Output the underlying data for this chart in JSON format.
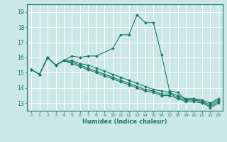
{
  "xlabel": "Humidex (Indice chaleur)",
  "bg_color": "#cce8e4",
  "grid_color": "#ffffff",
  "line_color": "#1a7a6a",
  "xlim": [
    -0.5,
    23.5
  ],
  "ylim": [
    12.5,
    19.5
  ],
  "yticks": [
    13,
    14,
    15,
    16,
    17,
    18,
    19
  ],
  "xticks": [
    0,
    1,
    2,
    3,
    4,
    5,
    6,
    7,
    8,
    9,
    10,
    11,
    12,
    13,
    14,
    15,
    16,
    17,
    18,
    19,
    20,
    21,
    22,
    23
  ],
  "line1_x": [
    0,
    1,
    2,
    3,
    4,
    5,
    6,
    7,
    8,
    10,
    11,
    12,
    13,
    14,
    15,
    16,
    17,
    18,
    19,
    20,
    21,
    22,
    23
  ],
  "line1_y": [
    15.2,
    14.9,
    16.0,
    15.5,
    15.8,
    16.1,
    16.0,
    16.1,
    16.1,
    16.6,
    17.5,
    17.5,
    18.8,
    18.3,
    18.3,
    16.2,
    13.8,
    13.7,
    13.2,
    13.3,
    13.1,
    12.7,
    13.0
  ],
  "line2_x": [
    0,
    1,
    2,
    3,
    4,
    5,
    6,
    7,
    8,
    9,
    10,
    11,
    12,
    13,
    14,
    15,
    16,
    17,
    18,
    19,
    20,
    21,
    22,
    23
  ],
  "line2_y": [
    15.2,
    14.9,
    16.0,
    15.5,
    15.8,
    15.6,
    15.4,
    15.2,
    15.0,
    14.8,
    14.6,
    14.4,
    14.2,
    14.0,
    13.8,
    13.7,
    13.5,
    13.5,
    13.3,
    13.1,
    13.1,
    13.0,
    12.8,
    13.1
  ],
  "line3_x": [
    0,
    1,
    2,
    3,
    4,
    5,
    6,
    7,
    8,
    9,
    10,
    11,
    12,
    13,
    14,
    15,
    16,
    17,
    18,
    19,
    20,
    21,
    22,
    23
  ],
  "line3_y": [
    15.2,
    14.9,
    16.0,
    15.5,
    15.8,
    15.7,
    15.5,
    15.3,
    15.1,
    14.9,
    14.7,
    14.5,
    14.3,
    14.1,
    13.9,
    13.8,
    13.6,
    13.6,
    13.4,
    13.2,
    13.2,
    13.1,
    12.9,
    13.2
  ],
  "line4_x": [
    0,
    1,
    2,
    3,
    4,
    5,
    6,
    7,
    8,
    9,
    10,
    11,
    12,
    13,
    14,
    15,
    16,
    17,
    18,
    19,
    20,
    21,
    22,
    23
  ],
  "line4_y": [
    15.2,
    14.9,
    16.0,
    15.5,
    15.8,
    15.8,
    15.6,
    15.5,
    15.3,
    15.1,
    14.9,
    14.7,
    14.5,
    14.3,
    14.1,
    13.9,
    13.8,
    13.7,
    13.5,
    13.3,
    13.3,
    13.2,
    13.0,
    13.3
  ]
}
